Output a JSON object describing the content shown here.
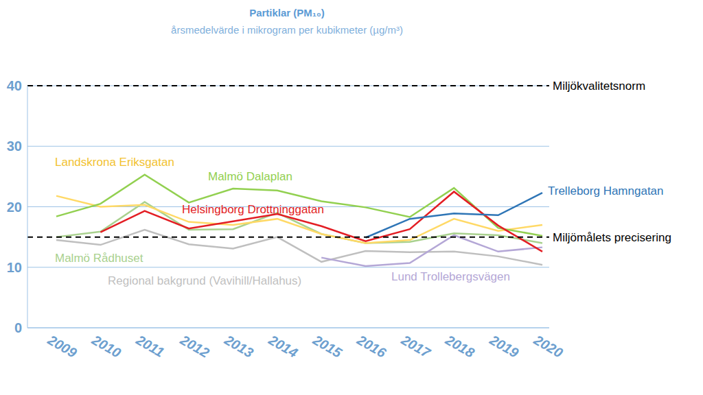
{
  "chart_data": {
    "type": "line",
    "title": "Partiklar (PM₁₀)",
    "subtitle": "årsmedelvärde i mikrogram per kubikmeter (µg/m³)",
    "categories": [
      "2009",
      "2010",
      "2011",
      "2012",
      "2013",
      "2014",
      "2015",
      "2016",
      "2017",
      "2018",
      "2019",
      "2020"
    ],
    "ylim": [
      0,
      40
    ],
    "yticks": [
      0,
      10,
      20,
      30,
      40
    ],
    "grid": true,
    "reference_lines": [
      {
        "value": 40,
        "label": "Miljökvalitetsnorm"
      },
      {
        "value": 15,
        "label": "Miljömålets precisering"
      }
    ],
    "series": [
      {
        "name": "Regional bakgrund (Vavihill/Hallahus)",
        "color": "#bfbfbf",
        "values": [
          14.5,
          13.7,
          16.2,
          13.8,
          13.1,
          15.0,
          10.9,
          12.7,
          12.5,
          12.6,
          11.8,
          10.4
        ]
      },
      {
        "name": "Lund Trollebergsvägen",
        "color": "#b4a7d6",
        "values": [
          null,
          null,
          null,
          null,
          null,
          null,
          11.6,
          10.2,
          10.7,
          15.3,
          12.6,
          13.3
        ]
      },
      {
        "name": "Malmö Rådhuset",
        "color": "#a9d18e",
        "values": [
          15.0,
          15.9,
          20.8,
          16.2,
          16.3,
          19.0,
          15.5,
          14.0,
          14.2,
          15.6,
          15.3,
          14.0
        ]
      },
      {
        "name": "Landskrona Eriksgatan",
        "color": "#ffd966",
        "values": [
          21.8,
          20.0,
          20.3,
          17.5,
          17.0,
          18.0,
          15.5,
          14.0,
          14.5,
          18.0,
          16.0,
          17.0
        ]
      },
      {
        "name": "Malmö Dalaplan",
        "color": "#92d050",
        "values": [
          18.4,
          20.5,
          25.3,
          20.7,
          23.0,
          22.7,
          20.9,
          19.9,
          18.3,
          23.1,
          16.5,
          15.2
        ]
      },
      {
        "name": "Helsingborg Drottninggatan",
        "color": "#e31e24",
        "values": [
          null,
          15.8,
          19.3,
          16.4,
          17.6,
          18.8,
          16.8,
          14.3,
          16.3,
          22.5,
          16.9,
          12.6
        ]
      },
      {
        "name": "Trelleborg Hamngatan",
        "color": "#2e75b6",
        "values": [
          null,
          null,
          null,
          null,
          null,
          null,
          null,
          14.9,
          18.0,
          18.9,
          18.6,
          22.3
        ]
      }
    ]
  }
}
